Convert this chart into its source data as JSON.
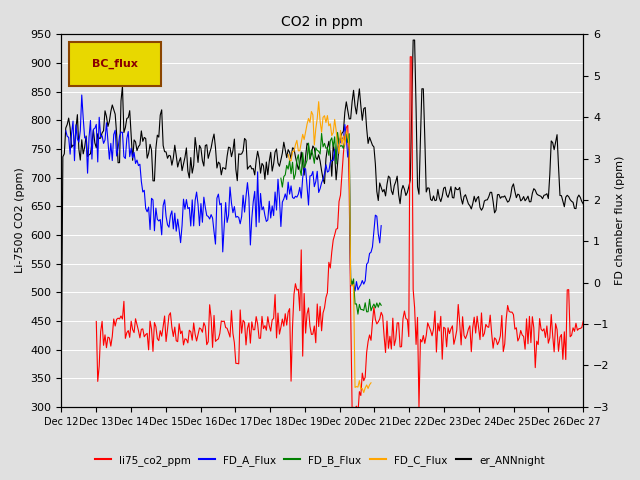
{
  "title": "CO2 in ppm",
  "ylabel_left": "Li-7500 CO2 (ppm)",
  "ylabel_right": "FD chamber flux (ppm)",
  "ylim_left": [
    300,
    950
  ],
  "ylim_right": [
    -3.0,
    6.0
  ],
  "yticks_left": [
    300,
    350,
    400,
    450,
    500,
    550,
    600,
    650,
    700,
    750,
    800,
    850,
    900,
    950
  ],
  "yticks_right": [
    -3.0,
    -2.0,
    -1.0,
    0.0,
    1.0,
    2.0,
    3.0,
    4.0,
    5.0,
    6.0
  ],
  "xtick_labels": [
    "Dec 12",
    "Dec 13",
    "Dec 14",
    "Dec 15",
    "Dec 16",
    "Dec 17",
    "Dec 18",
    "Dec 19",
    "Dec 20",
    "Dec 21",
    "Dec 22",
    "Dec 23",
    "Dec 24",
    "Dec 25",
    "Dec 26",
    "Dec 27"
  ],
  "axes_bg_color": "#e0e0e0",
  "grid_color": "white",
  "legend_box_text": "BC_flux",
  "colors": {
    "li75_co2_ppm": "red",
    "FD_A_Flux": "blue",
    "FD_B_Flux": "green",
    "FD_C_Flux": "orange",
    "er_ANNnight": "black"
  }
}
